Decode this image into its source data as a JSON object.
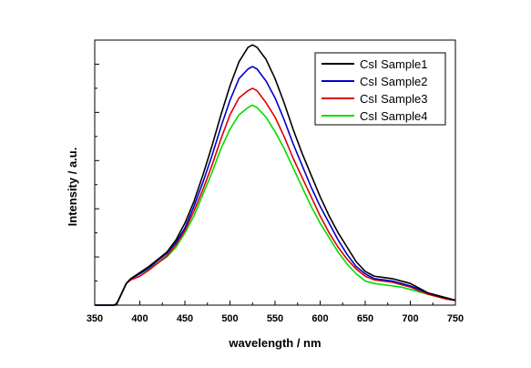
{
  "chart_data": {
    "type": "line",
    "title": "",
    "xlabel": "wavelength / nm",
    "ylabel": "Intensity / a.u.",
    "xlim": [
      350,
      750
    ],
    "ylim": [
      0,
      1.1
    ],
    "xticks": [
      "350",
      "400",
      "450",
      "500",
      "550",
      "600",
      "650",
      "700",
      "750"
    ],
    "y_tick_labels_shown": false,
    "grid": false,
    "legend_position": "top-right",
    "x": [
      350,
      372,
      375,
      380,
      385,
      390,
      400,
      410,
      420,
      430,
      440,
      450,
      460,
      470,
      480,
      490,
      500,
      510,
      520,
      525,
      530,
      540,
      550,
      560,
      570,
      580,
      590,
      600,
      610,
      620,
      630,
      640,
      650,
      660,
      670,
      680,
      690,
      700,
      710,
      720,
      730,
      740,
      750
    ],
    "series": [
      {
        "name": "CsI Sample1",
        "color": "#000000",
        "values": [
          0,
          0,
          0.01,
          0.05,
          0.09,
          0.11,
          0.135,
          0.16,
          0.19,
          0.22,
          0.27,
          0.34,
          0.43,
          0.54,
          0.66,
          0.79,
          0.91,
          1.01,
          1.07,
          1.08,
          1.07,
          1.02,
          0.94,
          0.84,
          0.73,
          0.63,
          0.54,
          0.45,
          0.37,
          0.3,
          0.24,
          0.18,
          0.14,
          0.12,
          0.115,
          0.11,
          0.1,
          0.09,
          0.07,
          0.05,
          0.04,
          0.03,
          0.02
        ]
      },
      {
        "name": "CsI Sample2",
        "color": "#0000cc",
        "values": [
          0,
          0,
          0.01,
          0.05,
          0.09,
          0.11,
          0.13,
          0.155,
          0.185,
          0.215,
          0.26,
          0.32,
          0.41,
          0.51,
          0.62,
          0.74,
          0.85,
          0.94,
          0.98,
          0.99,
          0.98,
          0.93,
          0.86,
          0.77,
          0.67,
          0.58,
          0.49,
          0.41,
          0.34,
          0.27,
          0.21,
          0.16,
          0.13,
          0.11,
          0.105,
          0.1,
          0.09,
          0.08,
          0.065,
          0.05,
          0.04,
          0.03,
          0.02
        ]
      },
      {
        "name": "CsI Sample3",
        "color": "#dd0000",
        "values": [
          0,
          0,
          0.01,
          0.05,
          0.09,
          0.105,
          0.12,
          0.145,
          0.175,
          0.205,
          0.25,
          0.31,
          0.39,
          0.48,
          0.58,
          0.69,
          0.79,
          0.86,
          0.89,
          0.9,
          0.89,
          0.84,
          0.78,
          0.7,
          0.61,
          0.53,
          0.45,
          0.37,
          0.3,
          0.24,
          0.19,
          0.15,
          0.12,
          0.105,
          0.1,
          0.095,
          0.085,
          0.075,
          0.06,
          0.045,
          0.035,
          0.025,
          0.02
        ]
      },
      {
        "name": "CsI Sample4",
        "color": "#00dd00",
        "values": [
          0,
          0,
          0.01,
          0.05,
          0.09,
          0.11,
          0.13,
          0.15,
          0.175,
          0.2,
          0.24,
          0.3,
          0.37,
          0.46,
          0.55,
          0.65,
          0.73,
          0.79,
          0.82,
          0.83,
          0.82,
          0.78,
          0.72,
          0.65,
          0.57,
          0.49,
          0.41,
          0.34,
          0.28,
          0.22,
          0.17,
          0.13,
          0.1,
          0.09,
          0.085,
          0.08,
          0.075,
          0.065,
          0.055,
          0.045,
          0.035,
          0.025,
          0.02
        ]
      }
    ]
  }
}
